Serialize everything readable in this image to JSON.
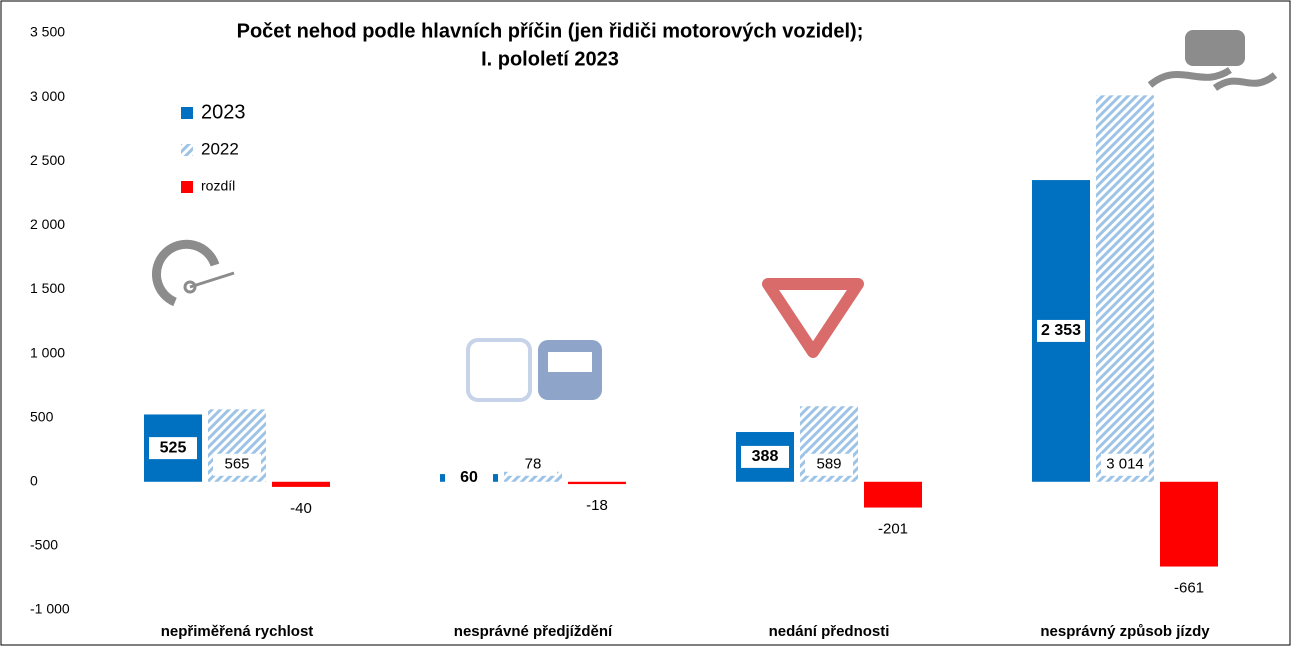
{
  "chart_data": {
    "type": "bar",
    "title": [
      "Počet nehod podle hlavních příčin (jen řidiči motorových vozidel);",
      "I. pololetí 2023"
    ],
    "categories": [
      "nepřiměřená rychlost",
      "nesprávné předjíždění",
      "nedání přednosti",
      "nesprávný způsob jízdy"
    ],
    "series": [
      {
        "name": "2023",
        "color": "#0070c0",
        "values": [
          525,
          60,
          388,
          2353
        ],
        "value_labels": [
          "525",
          "60",
          "388",
          "2 353"
        ]
      },
      {
        "name": "2022",
        "color": "#9dc3e6",
        "pattern": "hatch",
        "values": [
          565,
          78,
          589,
          3014
        ],
        "value_labels": [
          "565",
          "78",
          "589",
          "3 014"
        ]
      },
      {
        "name": "rozdíl",
        "color": "#ff0000",
        "values": [
          -40,
          -18,
          -201,
          -661
        ]
      }
    ],
    "ylim": [
      -1000,
      3500
    ],
    "yticks": [
      {
        "value": -1000,
        "label": "-1 000"
      },
      -500,
      0,
      500,
      {
        "value": 1000,
        "label": "1 000"
      },
      {
        "value": 1500,
        "label": "1 500"
      },
      {
        "value": 2000,
        "label": "2 000"
      },
      {
        "value": 2500,
        "label": "2 500"
      },
      {
        "value": 3000,
        "label": "3 000"
      },
      {
        "value": 3500,
        "label": "3 500"
      }
    ],
    "grid": false,
    "legend": "upper left"
  }
}
